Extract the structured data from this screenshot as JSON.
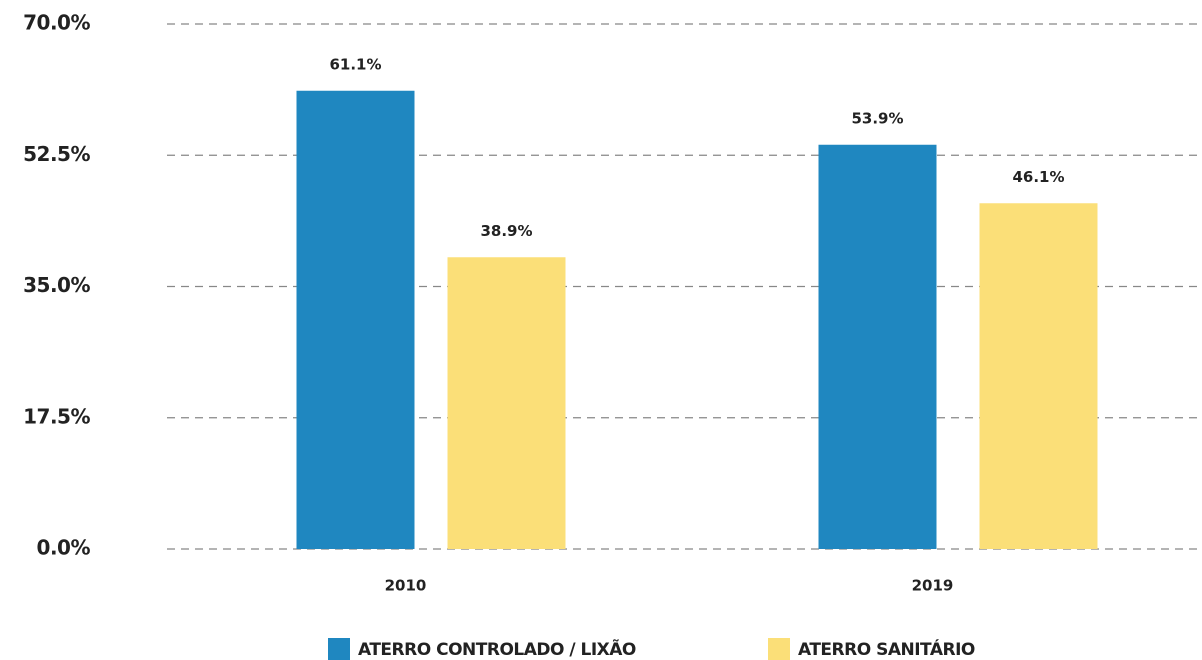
{
  "chart_data": {
    "type": "bar",
    "categories": [
      "2010",
      "2019"
    ],
    "series": [
      {
        "name": "ATERRO CONTROLADO / LIXÃO",
        "color": "#1f87c0",
        "values": [
          61.1,
          53.9
        ],
        "value_labels": [
          "61.1%",
          "53.9%"
        ]
      },
      {
        "name": "ATERRO SANITÁRIO",
        "color": "#fbdf78",
        "values": [
          38.9,
          46.1
        ],
        "value_labels": [
          "38.9%",
          "46.1%"
        ]
      }
    ],
    "ylim": [
      0,
      70
    ],
    "yticks": [
      {
        "value": 0,
        "label": "0.0%"
      },
      {
        "value": 17.5,
        "label": "17.5%"
      },
      {
        "value": 35,
        "label": "35.0%"
      },
      {
        "value": 52.5,
        "label": "52.5%"
      },
      {
        "value": 70,
        "label": "70.0%"
      }
    ],
    "grid": true,
    "legend": "bottom"
  }
}
